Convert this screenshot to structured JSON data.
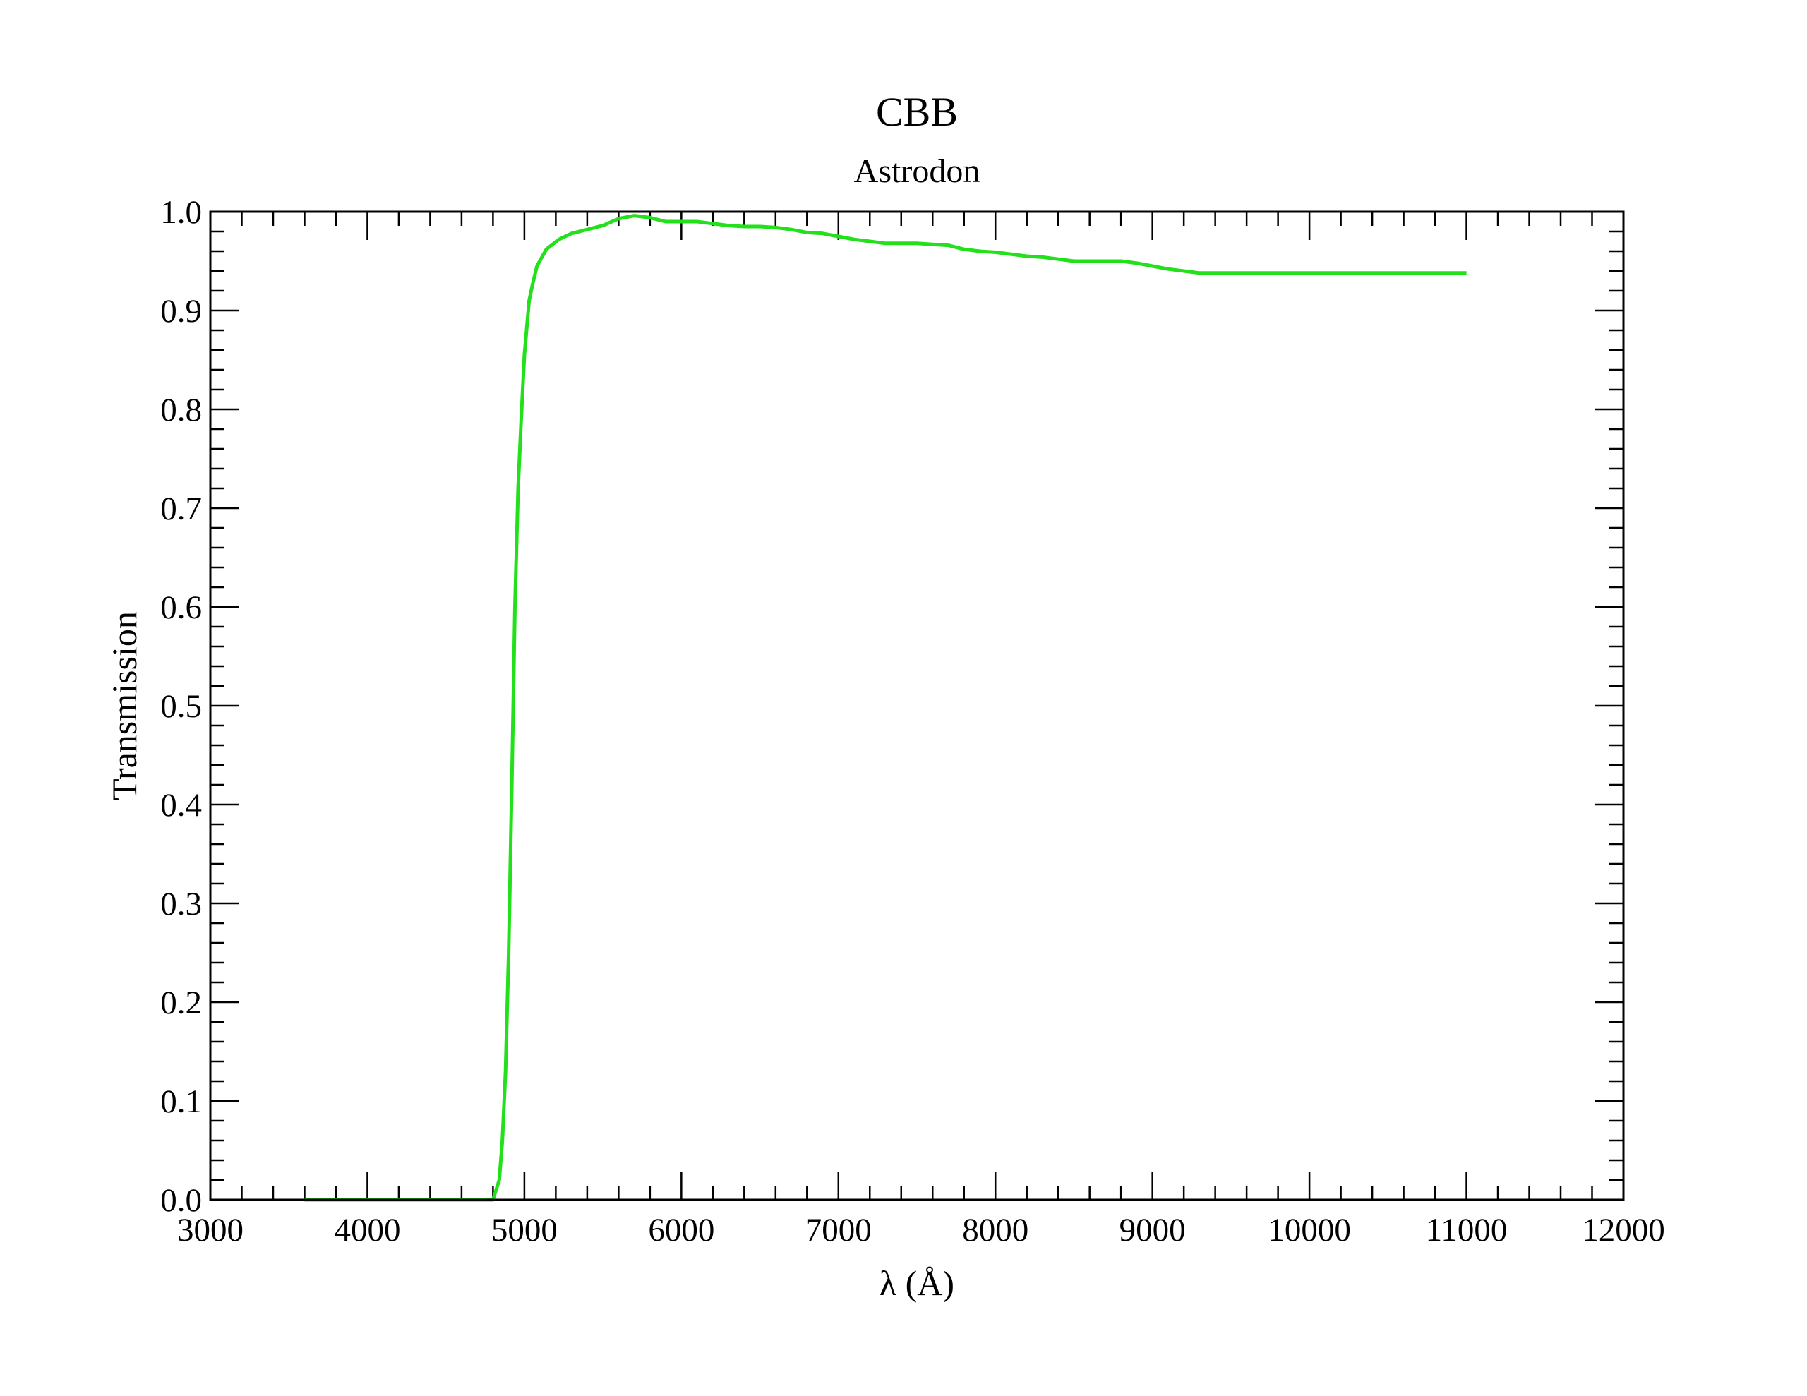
{
  "chart_data": {
    "type": "line",
    "title": "CBB",
    "subtitle": "Astrodon",
    "xlabel": "λ (Å)",
    "ylabel": "Transmission",
    "xlim": [
      3000,
      12000
    ],
    "ylim": [
      0.0,
      1.0
    ],
    "x_ticks": [
      "3000",
      "4000",
      "5000",
      "6000",
      "7000",
      "8000",
      "9000",
      "10000",
      "11000",
      "12000"
    ],
    "y_ticks": [
      "0.0",
      "0.1",
      "0.2",
      "0.3",
      "0.4",
      "0.5",
      "0.6",
      "0.7",
      "0.8",
      "0.9",
      "1.0"
    ],
    "grid": false,
    "legend": "none",
    "series": [
      {
        "color": "#22e01a",
        "x": [
          3600,
          4800,
          4820,
          4840,
          4860,
          4880,
          4900,
          4920,
          4940,
          4960,
          4980,
          5000,
          5030,
          5050,
          5080,
          5140,
          5220,
          5300,
          5400,
          5500,
          5600,
          5700,
          5800,
          5900,
          6000,
          6100,
          6200,
          6300,
          6400,
          6500,
          6600,
          6700,
          6800,
          6900,
          7000,
          7100,
          7200,
          7300,
          7400,
          7500,
          7600,
          7700,
          7800,
          7900,
          8000,
          8100,
          8200,
          8300,
          8400,
          8500,
          8600,
          8700,
          8800,
          8900,
          9000,
          9100,
          9200,
          9300,
          9400,
          9600,
          9800,
          10000,
          10500,
          11000
        ],
        "y": [
          0.0,
          0.0,
          0.01,
          0.02,
          0.06,
          0.13,
          0.25,
          0.42,
          0.6,
          0.72,
          0.79,
          0.855,
          0.91,
          0.925,
          0.945,
          0.962,
          0.972,
          0.978,
          0.982,
          0.986,
          0.993,
          0.996,
          0.994,
          0.99,
          0.99,
          0.99,
          0.988,
          0.986,
          0.985,
          0.985,
          0.984,
          0.982,
          0.979,
          0.978,
          0.975,
          0.972,
          0.97,
          0.968,
          0.968,
          0.968,
          0.967,
          0.966,
          0.962,
          0.96,
          0.959,
          0.957,
          0.955,
          0.954,
          0.952,
          0.95,
          0.95,
          0.95,
          0.95,
          0.948,
          0.945,
          0.942,
          0.94,
          0.938,
          0.938,
          0.938,
          0.938,
          0.938,
          0.938,
          0.938
        ]
      }
    ]
  }
}
